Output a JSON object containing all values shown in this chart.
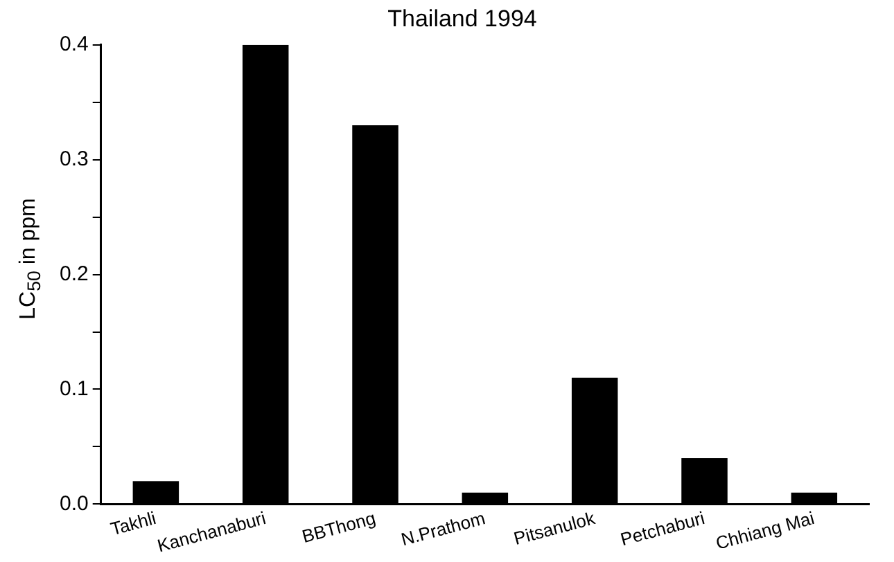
{
  "chart_data": {
    "type": "bar",
    "title": "Thailand 1994",
    "ylabel": "LC$_{50}$ in ppm",
    "categories": [
      "Takhli",
      "Kanchanaburi",
      "BBThong",
      "N.Prathom",
      "Pitsanulok",
      "Petchaburi",
      "Chhiang Mai"
    ],
    "values": [
      0.02,
      0.4,
      0.33,
      0.01,
      0.11,
      0.04,
      0.01
    ],
    "color": "#000000",
    "ylim": [
      0,
      0.4
    ],
    "yticks": [
      {
        "value": 0,
        "label": "0.0"
      },
      {
        "value": 0.05,
        "label": null
      },
      {
        "value": 0.1,
        "label": "0.1"
      },
      {
        "value": 0.15,
        "label": null
      },
      {
        "value": 0.2,
        "label": "0.2"
      },
      {
        "value": 0.25,
        "label": null
      },
      {
        "value": 0.3,
        "label": "0.3"
      },
      {
        "value": 0.35,
        "label": null
      },
      {
        "value": 0.4,
        "label": "0.4"
      }
    ],
    "grid": false,
    "legend": false
  }
}
